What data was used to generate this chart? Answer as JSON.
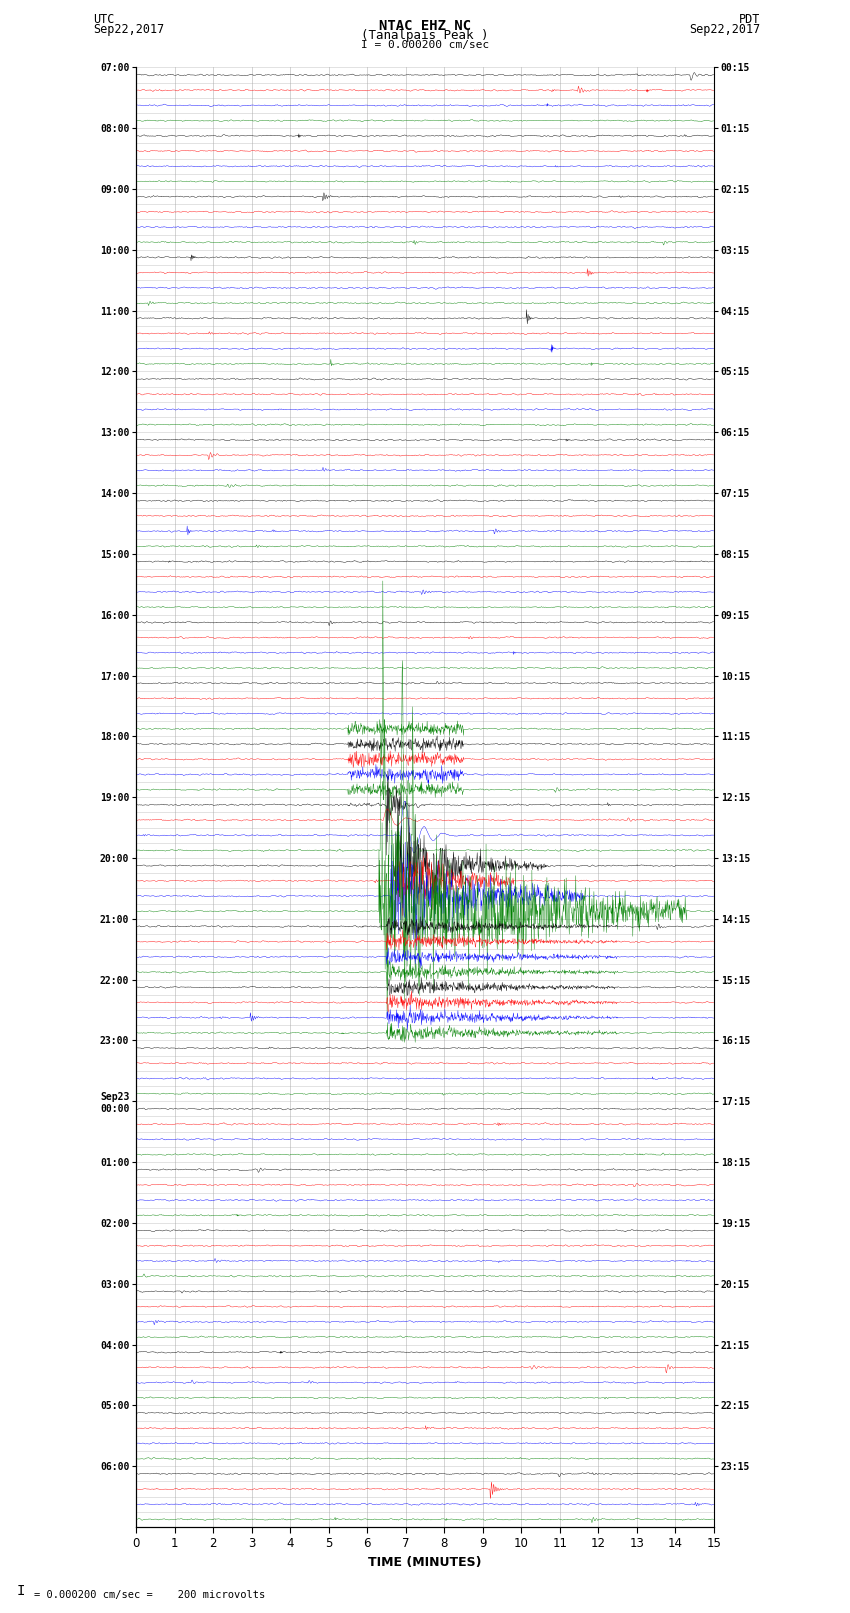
{
  "title_line1": "NTAC EHZ NC",
  "title_line2": "(Tanalpais Peak )",
  "scale_label": "I = 0.000200 cm/sec",
  "left_header": "UTC",
  "left_date": "Sep22,2017",
  "right_header": "PDT",
  "right_date": "Sep22,2017",
  "footer_note": "= 0.000200 cm/sec =    200 microvolts",
  "xlabel": "TIME (MINUTES)",
  "xlim": [
    0,
    15
  ],
  "figure_width": 8.5,
  "figure_height": 16.13,
  "bg_color": "#ffffff",
  "grid_color": "#aaaaaa",
  "colors": [
    "black",
    "red",
    "blue",
    "green"
  ],
  "num_hours": 24,
  "rows_per_hour": 4,
  "utc_labels": [
    "07:00",
    "",
    "",
    "",
    "08:00",
    "",
    "",
    "",
    "09:00",
    "",
    "",
    "",
    "10:00",
    "",
    "",
    "",
    "11:00",
    "",
    "",
    "",
    "12:00",
    "",
    "",
    "",
    "13:00",
    "",
    "",
    "",
    "14:00",
    "",
    "",
    "",
    "15:00",
    "",
    "",
    "",
    "16:00",
    "",
    "",
    "",
    "17:00",
    "",
    "",
    "",
    "18:00",
    "",
    "",
    "",
    "19:00",
    "",
    "",
    "",
    "20:00",
    "",
    "",
    "",
    "21:00",
    "",
    "",
    "",
    "22:00",
    "",
    "",
    "",
    "23:00",
    "",
    "",
    "",
    "Sep23\n00:00",
    "",
    "",
    "",
    "01:00",
    "",
    "",
    "",
    "02:00",
    "",
    "",
    "",
    "03:00",
    "",
    "",
    "",
    "04:00",
    "",
    "",
    "",
    "05:00",
    "",
    "",
    "",
    "06:00",
    "",
    "",
    ""
  ],
  "pdt_labels": [
    "00:15",
    "",
    "",
    "",
    "01:15",
    "",
    "",
    "",
    "02:15",
    "",
    "",
    "",
    "03:15",
    "",
    "",
    "",
    "04:15",
    "",
    "",
    "",
    "05:15",
    "",
    "",
    "",
    "06:15",
    "",
    "",
    "",
    "07:15",
    "",
    "",
    "",
    "08:15",
    "",
    "",
    "",
    "09:15",
    "",
    "",
    "",
    "10:15",
    "",
    "",
    "",
    "11:15",
    "",
    "",
    "",
    "12:15",
    "",
    "",
    "",
    "13:15",
    "",
    "",
    "",
    "14:15",
    "",
    "",
    "",
    "15:15",
    "",
    "",
    "",
    "16:15",
    "",
    "",
    "",
    "17:15",
    "",
    "",
    "",
    "18:15",
    "",
    "",
    "",
    "19:15",
    "",
    "",
    "",
    "20:15",
    "",
    "",
    "",
    "21:15",
    "",
    "",
    "",
    "22:15",
    "",
    "",
    "",
    "23:15",
    "",
    "",
    ""
  ]
}
